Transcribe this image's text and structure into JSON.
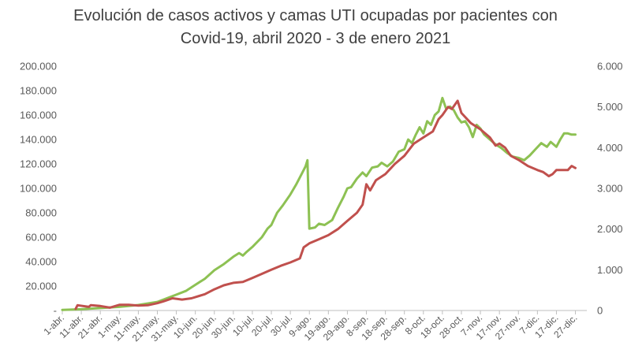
{
  "chart_data": {
    "type": "line",
    "title_line1": "Evolución de casos activos y camas UTI ocupadas por pacientes con",
    "title_line2": "Covid-19, abril 2020 - 3 de enero 2021",
    "x_tick_labels": [
      "1-abr.",
      "11-abr.",
      "21-abr.",
      "1-may.",
      "11-may.",
      "21-may.",
      "31-may.",
      "10-jun.",
      "20-jun.",
      "30-jun.",
      "10-jul.",
      "20-jul.",
      "30-jul.",
      "9-ago.",
      "19-ago.",
      "29-ago.",
      "8-sep.",
      "18-sep.",
      "28-sep.",
      "8-oct.",
      "18-oct.",
      "28-oct.",
      "7-nov.",
      "17-nov.",
      "27-nov.",
      "7-dic.",
      "17-dic.",
      "27-dic."
    ],
    "y_left": {
      "ylim": [
        0,
        200000
      ],
      "ticks": [
        0,
        20000,
        40000,
        60000,
        80000,
        100000,
        120000,
        140000,
        160000,
        180000,
        200000
      ],
      "tick_labels": [
        "-",
        "20.000",
        "40.000",
        "60.000",
        "80.000",
        "100.000",
        "120.000",
        "140.000",
        "160.000",
        "180.000",
        "200.000"
      ]
    },
    "y_right": {
      "ylim": [
        0,
        6000
      ],
      "ticks": [
        0,
        1000,
        2000,
        3000,
        4000,
        5000,
        6000
      ],
      "tick_labels": [
        "0",
        "1.000",
        "2.000",
        "3.000",
        "4.000",
        "5.000",
        "6.000"
      ]
    },
    "grid": false,
    "legend": "none",
    "series": [
      {
        "axis": "left",
        "color": "#8DC153",
        "points": [
          [
            0,
            500
          ],
          [
            10,
            1000
          ],
          [
            20,
            2000
          ],
          [
            30,
            3000
          ],
          [
            40,
            4500
          ],
          [
            50,
            7000
          ],
          [
            55,
            10000
          ],
          [
            60,
            13000
          ],
          [
            65,
            16000
          ],
          [
            70,
            21000
          ],
          [
            75,
            26000
          ],
          [
            80,
            33000
          ],
          [
            85,
            38000
          ],
          [
            90,
            44000
          ],
          [
            93,
            47000
          ],
          [
            95,
            45000
          ],
          [
            97,
            48000
          ],
          [
            100,
            52000
          ],
          [
            105,
            60000
          ],
          [
            108,
            67000
          ],
          [
            110,
            70000
          ],
          [
            113,
            80000
          ],
          [
            116,
            86000
          ],
          [
            120,
            95000
          ],
          [
            123,
            103000
          ],
          [
            126,
            112000
          ],
          [
            128,
            118000
          ],
          [
            129,
            123000
          ],
          [
            130,
            67000
          ],
          [
            133,
            68000
          ],
          [
            135,
            71000
          ],
          [
            138,
            70000
          ],
          [
            142,
            74000
          ],
          [
            145,
            84000
          ],
          [
            148,
            93000
          ],
          [
            150,
            100000
          ],
          [
            152,
            101000
          ],
          [
            155,
            108000
          ],
          [
            158,
            113000
          ],
          [
            160,
            110000
          ],
          [
            163,
            117000
          ],
          [
            166,
            118000
          ],
          [
            168,
            121000
          ],
          [
            171,
            118000
          ],
          [
            174,
            122000
          ],
          [
            177,
            130000
          ],
          [
            180,
            132000
          ],
          [
            182,
            140000
          ],
          [
            184,
            137000
          ],
          [
            186,
            144000
          ],
          [
            188,
            150000
          ],
          [
            190,
            145000
          ],
          [
            192,
            155000
          ],
          [
            194,
            152000
          ],
          [
            196,
            160000
          ],
          [
            198,
            163000
          ],
          [
            200,
            174000
          ],
          [
            202,
            165000
          ],
          [
            204,
            167000
          ],
          [
            206,
            164000
          ],
          [
            208,
            158000
          ],
          [
            210,
            154000
          ],
          [
            212,
            155000
          ],
          [
            214,
            150000
          ],
          [
            216,
            142000
          ],
          [
            218,
            152000
          ],
          [
            220,
            149000
          ],
          [
            222,
            144000
          ],
          [
            225,
            140000
          ],
          [
            228,
            136000
          ],
          [
            231,
            133000
          ],
          [
            234,
            129000
          ],
          [
            237,
            126000
          ],
          [
            240,
            125000
          ],
          [
            243,
            123000
          ],
          [
            246,
            127000
          ],
          [
            249,
            132000
          ],
          [
            252,
            137000
          ],
          [
            255,
            134000
          ],
          [
            257,
            138000
          ],
          [
            260,
            134000
          ],
          [
            262,
            140000
          ],
          [
            264,
            145000
          ],
          [
            266,
            145000
          ],
          [
            268,
            144000
          ],
          [
            270,
            144000
          ]
        ]
      },
      {
        "axis": "right",
        "color": "#C0504D",
        "points": [
          [
            7,
            40
          ],
          [
            8,
            130
          ],
          [
            14,
            90
          ],
          [
            15,
            130
          ],
          [
            20,
            110
          ],
          [
            25,
            70
          ],
          [
            30,
            140
          ],
          [
            35,
            140
          ],
          [
            40,
            120
          ],
          [
            45,
            130
          ],
          [
            50,
            180
          ],
          [
            53,
            220
          ],
          [
            58,
            300
          ],
          [
            63,
            270
          ],
          [
            68,
            300
          ],
          [
            75,
            400
          ],
          [
            80,
            520
          ],
          [
            85,
            620
          ],
          [
            90,
            680
          ],
          [
            95,
            700
          ],
          [
            100,
            800
          ],
          [
            105,
            900
          ],
          [
            110,
            1000
          ],
          [
            115,
            1100
          ],
          [
            120,
            1180
          ],
          [
            125,
            1280
          ],
          [
            127,
            1550
          ],
          [
            130,
            1650
          ],
          [
            135,
            1750
          ],
          [
            140,
            1850
          ],
          [
            145,
            2000
          ],
          [
            150,
            2200
          ],
          [
            155,
            2400
          ],
          [
            158,
            2600
          ],
          [
            160,
            3100
          ],
          [
            162,
            2950
          ],
          [
            165,
            3200
          ],
          [
            170,
            3350
          ],
          [
            175,
            3600
          ],
          [
            180,
            3800
          ],
          [
            185,
            4100
          ],
          [
            190,
            4250
          ],
          [
            195,
            4400
          ],
          [
            198,
            4700
          ],
          [
            200,
            4800
          ],
          [
            203,
            5000
          ],
          [
            205,
            4950
          ],
          [
            208,
            5150
          ],
          [
            210,
            4850
          ],
          [
            215,
            4600
          ],
          [
            220,
            4450
          ],
          [
            225,
            4250
          ],
          [
            228,
            4050
          ],
          [
            230,
            4100
          ],
          [
            233,
            4000
          ],
          [
            236,
            3800
          ],
          [
            240,
            3700
          ],
          [
            245,
            3550
          ],
          [
            250,
            3450
          ],
          [
            253,
            3400
          ],
          [
            256,
            3300
          ],
          [
            258,
            3350
          ],
          [
            260,
            3450
          ],
          [
            263,
            3450
          ],
          [
            266,
            3450
          ],
          [
            268,
            3550
          ],
          [
            270,
            3500
          ]
        ]
      }
    ]
  }
}
